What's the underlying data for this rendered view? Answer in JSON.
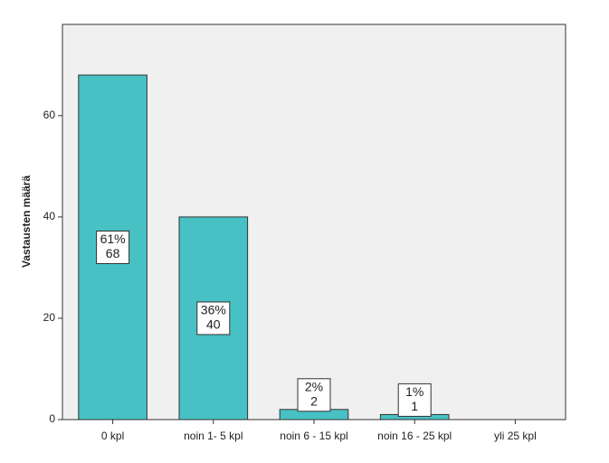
{
  "chart_data": {
    "type": "bar",
    "y_label": "Vastausten määrä",
    "categories": [
      "0 kpl",
      "noin 1- 5 kpl",
      "noin 6 - 15 kpl",
      "noin 16 - 25 kpl",
      "yli 25 kpl"
    ],
    "values": [
      68,
      40,
      2,
      1,
      0
    ],
    "percent_labels": [
      "61%",
      "36%",
      "2%",
      "1%",
      null
    ],
    "color": "#48c1c4",
    "ylim": [
      0,
      78
    ],
    "yticks": [
      0,
      20,
      40,
      60
    ],
    "grid": false
  }
}
